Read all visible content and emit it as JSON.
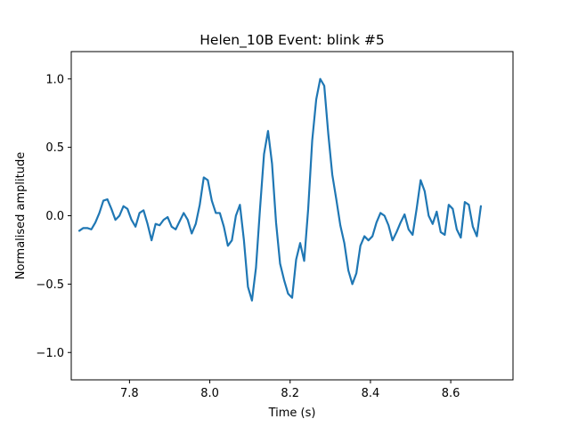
{
  "chart_data": {
    "type": "line",
    "title": "Helen_10B Event: blink #5",
    "xlabel": "Time (s)",
    "ylabel": "Normalised amplitude",
    "xlim": [
      7.655,
      8.755
    ],
    "ylim": [
      -1.2,
      1.2
    ],
    "x_ticks": [
      7.8,
      8.0,
      8.2,
      8.4,
      8.6
    ],
    "x_tick_labels": [
      "7.8",
      "8.0",
      "8.2",
      "8.4",
      "8.6"
    ],
    "y_ticks": [
      -1.0,
      -0.5,
      0.0,
      0.5,
      1.0
    ],
    "y_tick_labels": [
      "−1.0",
      "−0.5",
      "0.0",
      "0.5",
      "1.0"
    ],
    "grid": false,
    "legend": "none",
    "colors": {
      "line": "#1f77b4",
      "axes": "#000000",
      "background": "#ffffff"
    },
    "series": [
      {
        "x": [
          7.675,
          7.685,
          7.695,
          7.705,
          7.715,
          7.725,
          7.735,
          7.745,
          7.755,
          7.765,
          7.775,
          7.785,
          7.795,
          7.805,
          7.815,
          7.825,
          7.835,
          7.845,
          7.855,
          7.865,
          7.875,
          7.885,
          7.895,
          7.905,
          7.915,
          7.925,
          7.935,
          7.945,
          7.955,
          7.965,
          7.975,
          7.985,
          7.995,
          8.005,
          8.015,
          8.025,
          8.035,
          8.045,
          8.055,
          8.065,
          8.075,
          8.085,
          8.095,
          8.105,
          8.115,
          8.125,
          8.135,
          8.145,
          8.155,
          8.165,
          8.175,
          8.185,
          8.195,
          8.205,
          8.215,
          8.225,
          8.235,
          8.245,
          8.255,
          8.265,
          8.275,
          8.285,
          8.295,
          8.305,
          8.315,
          8.325,
          8.335,
          8.345,
          8.355,
          8.365,
          8.375,
          8.385,
          8.395,
          8.405,
          8.415,
          8.425,
          8.435,
          8.445,
          8.455,
          8.465,
          8.475,
          8.485,
          8.495,
          8.505,
          8.515,
          8.525,
          8.535,
          8.545,
          8.555,
          8.565,
          8.575,
          8.585,
          8.595,
          8.605,
          8.615,
          8.625,
          8.635,
          8.645,
          8.655,
          8.665,
          8.675
        ],
        "y": [
          -0.11,
          -0.09,
          -0.09,
          -0.1,
          -0.05,
          0.02,
          0.11,
          0.12,
          0.05,
          -0.03,
          0.0,
          0.07,
          0.05,
          -0.03,
          -0.08,
          0.02,
          0.04,
          -0.06,
          -0.18,
          -0.06,
          -0.07,
          -0.03,
          -0.01,
          -0.08,
          -0.1,
          -0.04,
          0.02,
          -0.03,
          -0.13,
          -0.06,
          0.08,
          0.28,
          0.26,
          0.11,
          0.02,
          0.02,
          -0.08,
          -0.22,
          -0.18,
          0.0,
          0.08,
          -0.18,
          -0.52,
          -0.62,
          -0.38,
          0.05,
          0.45,
          0.62,
          0.38,
          -0.05,
          -0.35,
          -0.47,
          -0.57,
          -0.6,
          -0.32,
          -0.2,
          -0.33,
          0.05,
          0.55,
          0.85,
          1.0,
          0.95,
          0.6,
          0.3,
          0.12,
          -0.07,
          -0.2,
          -0.4,
          -0.5,
          -0.42,
          -0.22,
          -0.15,
          -0.18,
          -0.15,
          -0.05,
          0.02,
          0.0,
          -0.07,
          -0.18,
          -0.12,
          -0.05,
          0.01,
          -0.1,
          -0.14,
          0.05,
          0.26,
          0.18,
          0.0,
          -0.06,
          0.03,
          -0.12,
          -0.14,
          0.08,
          0.05,
          -0.1,
          -0.16,
          0.1,
          0.08,
          -0.08,
          -0.15,
          0.07
        ]
      }
    ]
  }
}
